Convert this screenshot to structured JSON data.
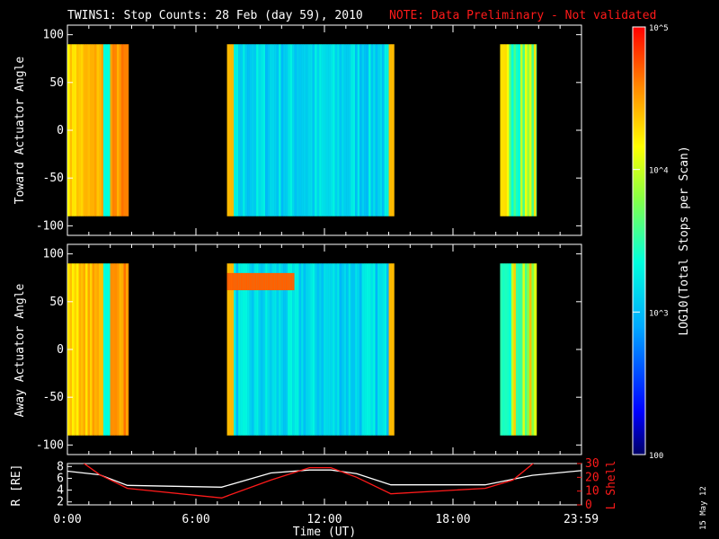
{
  "header": {
    "title": "TWINS1: Stop Counts: 28 Feb (day  59), 2010",
    "note": "NOTE: Data Preliminary - Not validated",
    "note_color": "#ff1a1a"
  },
  "side_note": "15 May 12",
  "chart_data": [
    {
      "type": "heatmap",
      "name": "toward",
      "ylabel": "Toward Actuator Angle",
      "ylim": [
        -110,
        110
      ],
      "yticks": [
        100,
        50,
        0,
        -50,
        -100
      ],
      "angle_range": [
        -90,
        90
      ],
      "xlim_hours": [
        0,
        24
      ],
      "data_segments_hours": [
        [
          0,
          2.85
        ],
        [
          7.45,
          15.25
        ],
        [
          20.2,
          21.9
        ]
      ]
    },
    {
      "type": "heatmap",
      "name": "away",
      "ylabel": "Away Actuator Angle",
      "ylim": [
        -110,
        110
      ],
      "yticks": [
        100,
        50,
        0,
        -50,
        -100
      ],
      "angle_range": [
        -90,
        90
      ],
      "xlim_hours": [
        0,
        24
      ],
      "data_segments_hours": [
        [
          0,
          2.85
        ],
        [
          7.45,
          15.25
        ],
        [
          20.2,
          21.9
        ]
      ]
    },
    {
      "type": "line",
      "name": "ephemeris",
      "xlabel": "Time (UT)",
      "xtick_labels": [
        "0:00",
        "6:00",
        "12:00",
        "18:00",
        "23:59"
      ],
      "xtick_hours": [
        0,
        6,
        12,
        18,
        23.98
      ],
      "left_axis": {
        "label": "R [RE]",
        "ylim": [
          1.5,
          8.5
        ],
        "yticks": [
          2,
          4,
          6,
          8
        ]
      },
      "right_axis": {
        "label": "L Shell",
        "ylim": [
          0,
          30
        ],
        "yticks": [
          0,
          10,
          20,
          30
        ]
      },
      "series": [
        {
          "name": "R [RE]",
          "color": "#ffffff",
          "axis": "left",
          "x": [
            0,
            1.5,
            2.8,
            7.2,
            9.5,
            11.3,
            12.3,
            13.5,
            15.1,
            19.5,
            21.7,
            23.98
          ],
          "y": [
            7.2,
            6.6,
            4.8,
            4.5,
            6.9,
            7.4,
            7.4,
            6.8,
            4.9,
            4.9,
            6.5,
            7.3
          ]
        },
        {
          "name": "L Shell",
          "color": "#ff1a1a",
          "axis": "right",
          "x": [
            0.6,
            1.5,
            2.8,
            7.2,
            9.5,
            11.3,
            12.3,
            13.5,
            15.1,
            19.5,
            20.8,
            21.9
          ],
          "y": [
            32,
            22,
            12,
            5,
            18,
            27,
            27,
            20,
            8,
            12,
            18,
            32
          ]
        }
      ]
    }
  ],
  "colorbar": {
    "label": "LOG10(Total Stops per Scan)",
    "tick_labels": [
      "10^5",
      "10^4",
      "10^3",
      "100"
    ],
    "tick_values": [
      100000,
      10000,
      1000,
      100
    ],
    "range": [
      100,
      100000
    ],
    "scale": "log"
  }
}
